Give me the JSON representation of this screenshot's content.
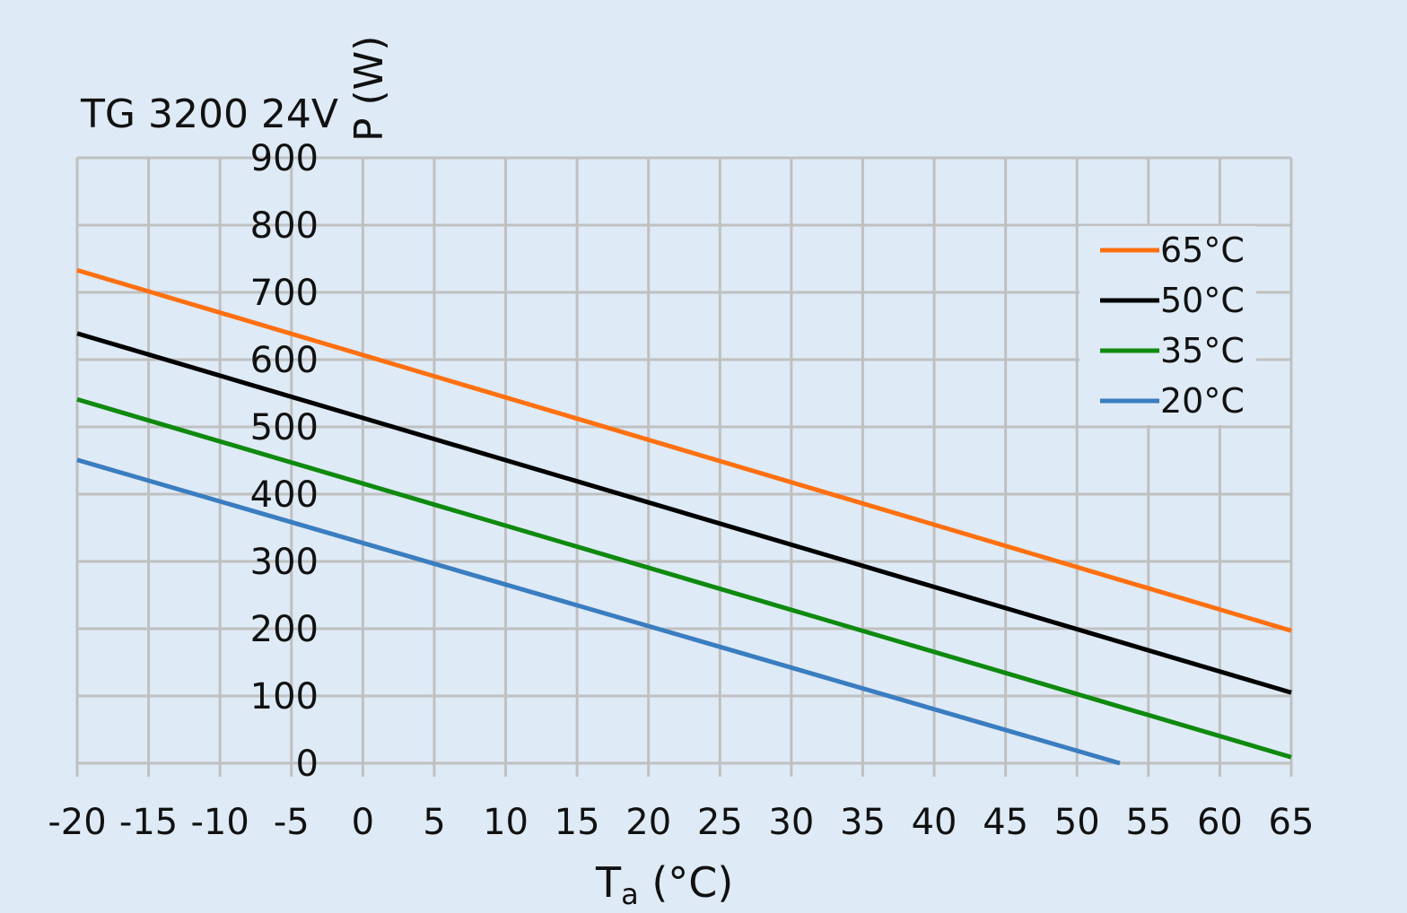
{
  "chart_data": {
    "type": "line",
    "title": "TG 3200 24V",
    "xlabel": "T",
    "xlabel_sub": "a",
    "xlabel_unit": " (°C)",
    "ylabel": "P (W)",
    "xlim": [
      -20,
      65
    ],
    "ylim": [
      0,
      900
    ],
    "xticks": [
      -20,
      -15,
      -10,
      -5,
      0,
      5,
      10,
      15,
      20,
      25,
      30,
      35,
      40,
      45,
      50,
      55,
      60,
      65
    ],
    "yticks": [
      0,
      100,
      200,
      300,
      400,
      500,
      600,
      700,
      800,
      900
    ],
    "grid": true,
    "legend_position": "top-right",
    "background": "#deeaf6",
    "series": [
      {
        "name": "65°C",
        "color": "#ff7011",
        "x": [
          -20,
          65
        ],
        "y": [
          733,
          197
        ]
      },
      {
        "name": "50°C",
        "color": "#000000",
        "x": [
          -20,
          65
        ],
        "y": [
          639,
          105
        ]
      },
      {
        "name": "35°C",
        "color": "#0f8a0f",
        "x": [
          -20,
          65
        ],
        "y": [
          541,
          9
        ]
      },
      {
        "name": "20°C",
        "color": "#3a7dc0",
        "x": [
          -20,
          53
        ],
        "y": [
          451,
          0
        ]
      }
    ]
  }
}
